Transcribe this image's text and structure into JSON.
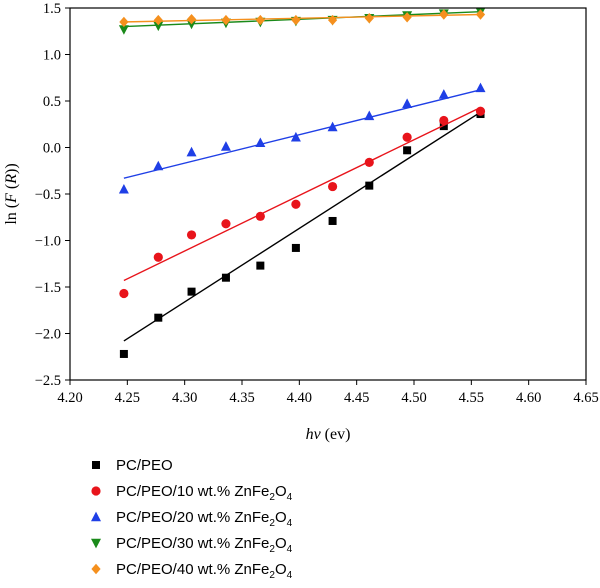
{
  "chart_data": {
    "type": "scatter",
    "xlabel_main": "hv",
    "xlabel_unit": " (ev)",
    "ylabel_prefix": "ln (",
    "ylabel_italic": "F",
    "ylabel_mid": " (",
    "ylabel_italic2": "R",
    "ylabel_suffix": "))",
    "xlim": [
      4.2,
      4.65
    ],
    "ylim": [
      -2.5,
      1.5
    ],
    "x_ticks": [
      4.2,
      4.25,
      4.3,
      4.35,
      4.4,
      4.45,
      4.5,
      4.55,
      4.6,
      4.65
    ],
    "x_tick_labels": [
      "4.20",
      "4.25",
      "4.30",
      "4.35",
      "4.40",
      "4.45",
      "4.50",
      "4.55",
      "4.60",
      "4.65"
    ],
    "y_ticks": [
      -2.5,
      -2.0,
      -1.5,
      -1.0,
      -0.5,
      0.0,
      0.5,
      1.0,
      1.5
    ],
    "y_tick_labels": [
      "−2.5",
      "−2.0",
      "−1.5",
      "−1.0",
      "−0.5",
      "0.0",
      "0.5",
      "1.0",
      "1.5"
    ],
    "grid": false,
    "legend_position": "below",
    "series": [
      {
        "label_main": "PC/PEO",
        "label_sub": "",
        "label_tail": "",
        "marker": "square",
        "color": "#000000",
        "x": [
          4.247,
          4.277,
          4.306,
          4.336,
          4.366,
          4.397,
          4.429,
          4.461,
          4.494,
          4.526,
          4.558
        ],
        "y": [
          -2.22,
          -1.83,
          -1.55,
          -1.4,
          -1.27,
          -1.08,
          -0.79,
          -0.41,
          -0.03,
          0.23,
          0.36
        ],
        "fit": [
          [
            4.247,
            -2.08
          ],
          [
            4.558,
            0.38
          ]
        ]
      },
      {
        "label_main": "PC/PEO/10 wt.% ZnFe",
        "label_sub": "2",
        "label_tail": "O",
        "label_sub2": "4",
        "marker": "circle",
        "color": "#e8141b",
        "x": [
          4.247,
          4.277,
          4.306,
          4.336,
          4.366,
          4.397,
          4.429,
          4.461,
          4.494,
          4.526,
          4.558
        ],
        "y": [
          -1.57,
          -1.18,
          -0.94,
          -0.82,
          -0.74,
          -0.61,
          -0.42,
          -0.16,
          0.11,
          0.29,
          0.39
        ],
        "fit": [
          [
            4.247,
            -1.43
          ],
          [
            4.558,
            0.43
          ]
        ]
      },
      {
        "label_main": "PC/PEO/20 wt.% ZnFe",
        "label_sub": "2",
        "label_tail": "O",
        "label_sub2": "4",
        "marker": "triangle-up",
        "color": "#1f3fe6",
        "x": [
          4.247,
          4.277,
          4.306,
          4.336,
          4.366,
          4.397,
          4.429,
          4.461,
          4.494,
          4.526,
          4.558
        ],
        "y": [
          -0.45,
          -0.2,
          -0.05,
          0.01,
          0.05,
          0.11,
          0.22,
          0.34,
          0.47,
          0.57,
          0.64
        ],
        "fit": [
          [
            4.247,
            -0.33
          ],
          [
            4.558,
            0.62
          ]
        ]
      },
      {
        "label_main": "PC/PEO/30 wt.% ZnFe",
        "label_sub": "2",
        "label_tail": "O",
        "label_sub2": "4",
        "marker": "triangle-down",
        "color": "#1a8a1a",
        "x": [
          4.247,
          4.277,
          4.306,
          4.336,
          4.366,
          4.397,
          4.429,
          4.461,
          4.494,
          4.526,
          4.558
        ],
        "y": [
          1.27,
          1.31,
          1.33,
          1.34,
          1.35,
          1.36,
          1.37,
          1.39,
          1.42,
          1.44,
          1.46
        ],
        "fit": [
          [
            4.247,
            1.3
          ],
          [
            4.558,
            1.46
          ]
        ]
      },
      {
        "label_main": "PC/PEO/40 wt.% ZnFe",
        "label_sub": "2",
        "label_tail": "O",
        "label_sub2": "4",
        "marker": "diamond",
        "color": "#f5901e",
        "x": [
          4.247,
          4.277,
          4.306,
          4.336,
          4.366,
          4.397,
          4.429,
          4.461,
          4.494,
          4.526,
          4.558
        ],
        "y": [
          1.35,
          1.37,
          1.38,
          1.37,
          1.37,
          1.37,
          1.37,
          1.39,
          1.4,
          1.43,
          1.43
        ],
        "fit": [
          [
            4.247,
            1.35
          ],
          [
            4.558,
            1.43
          ]
        ]
      }
    ]
  }
}
